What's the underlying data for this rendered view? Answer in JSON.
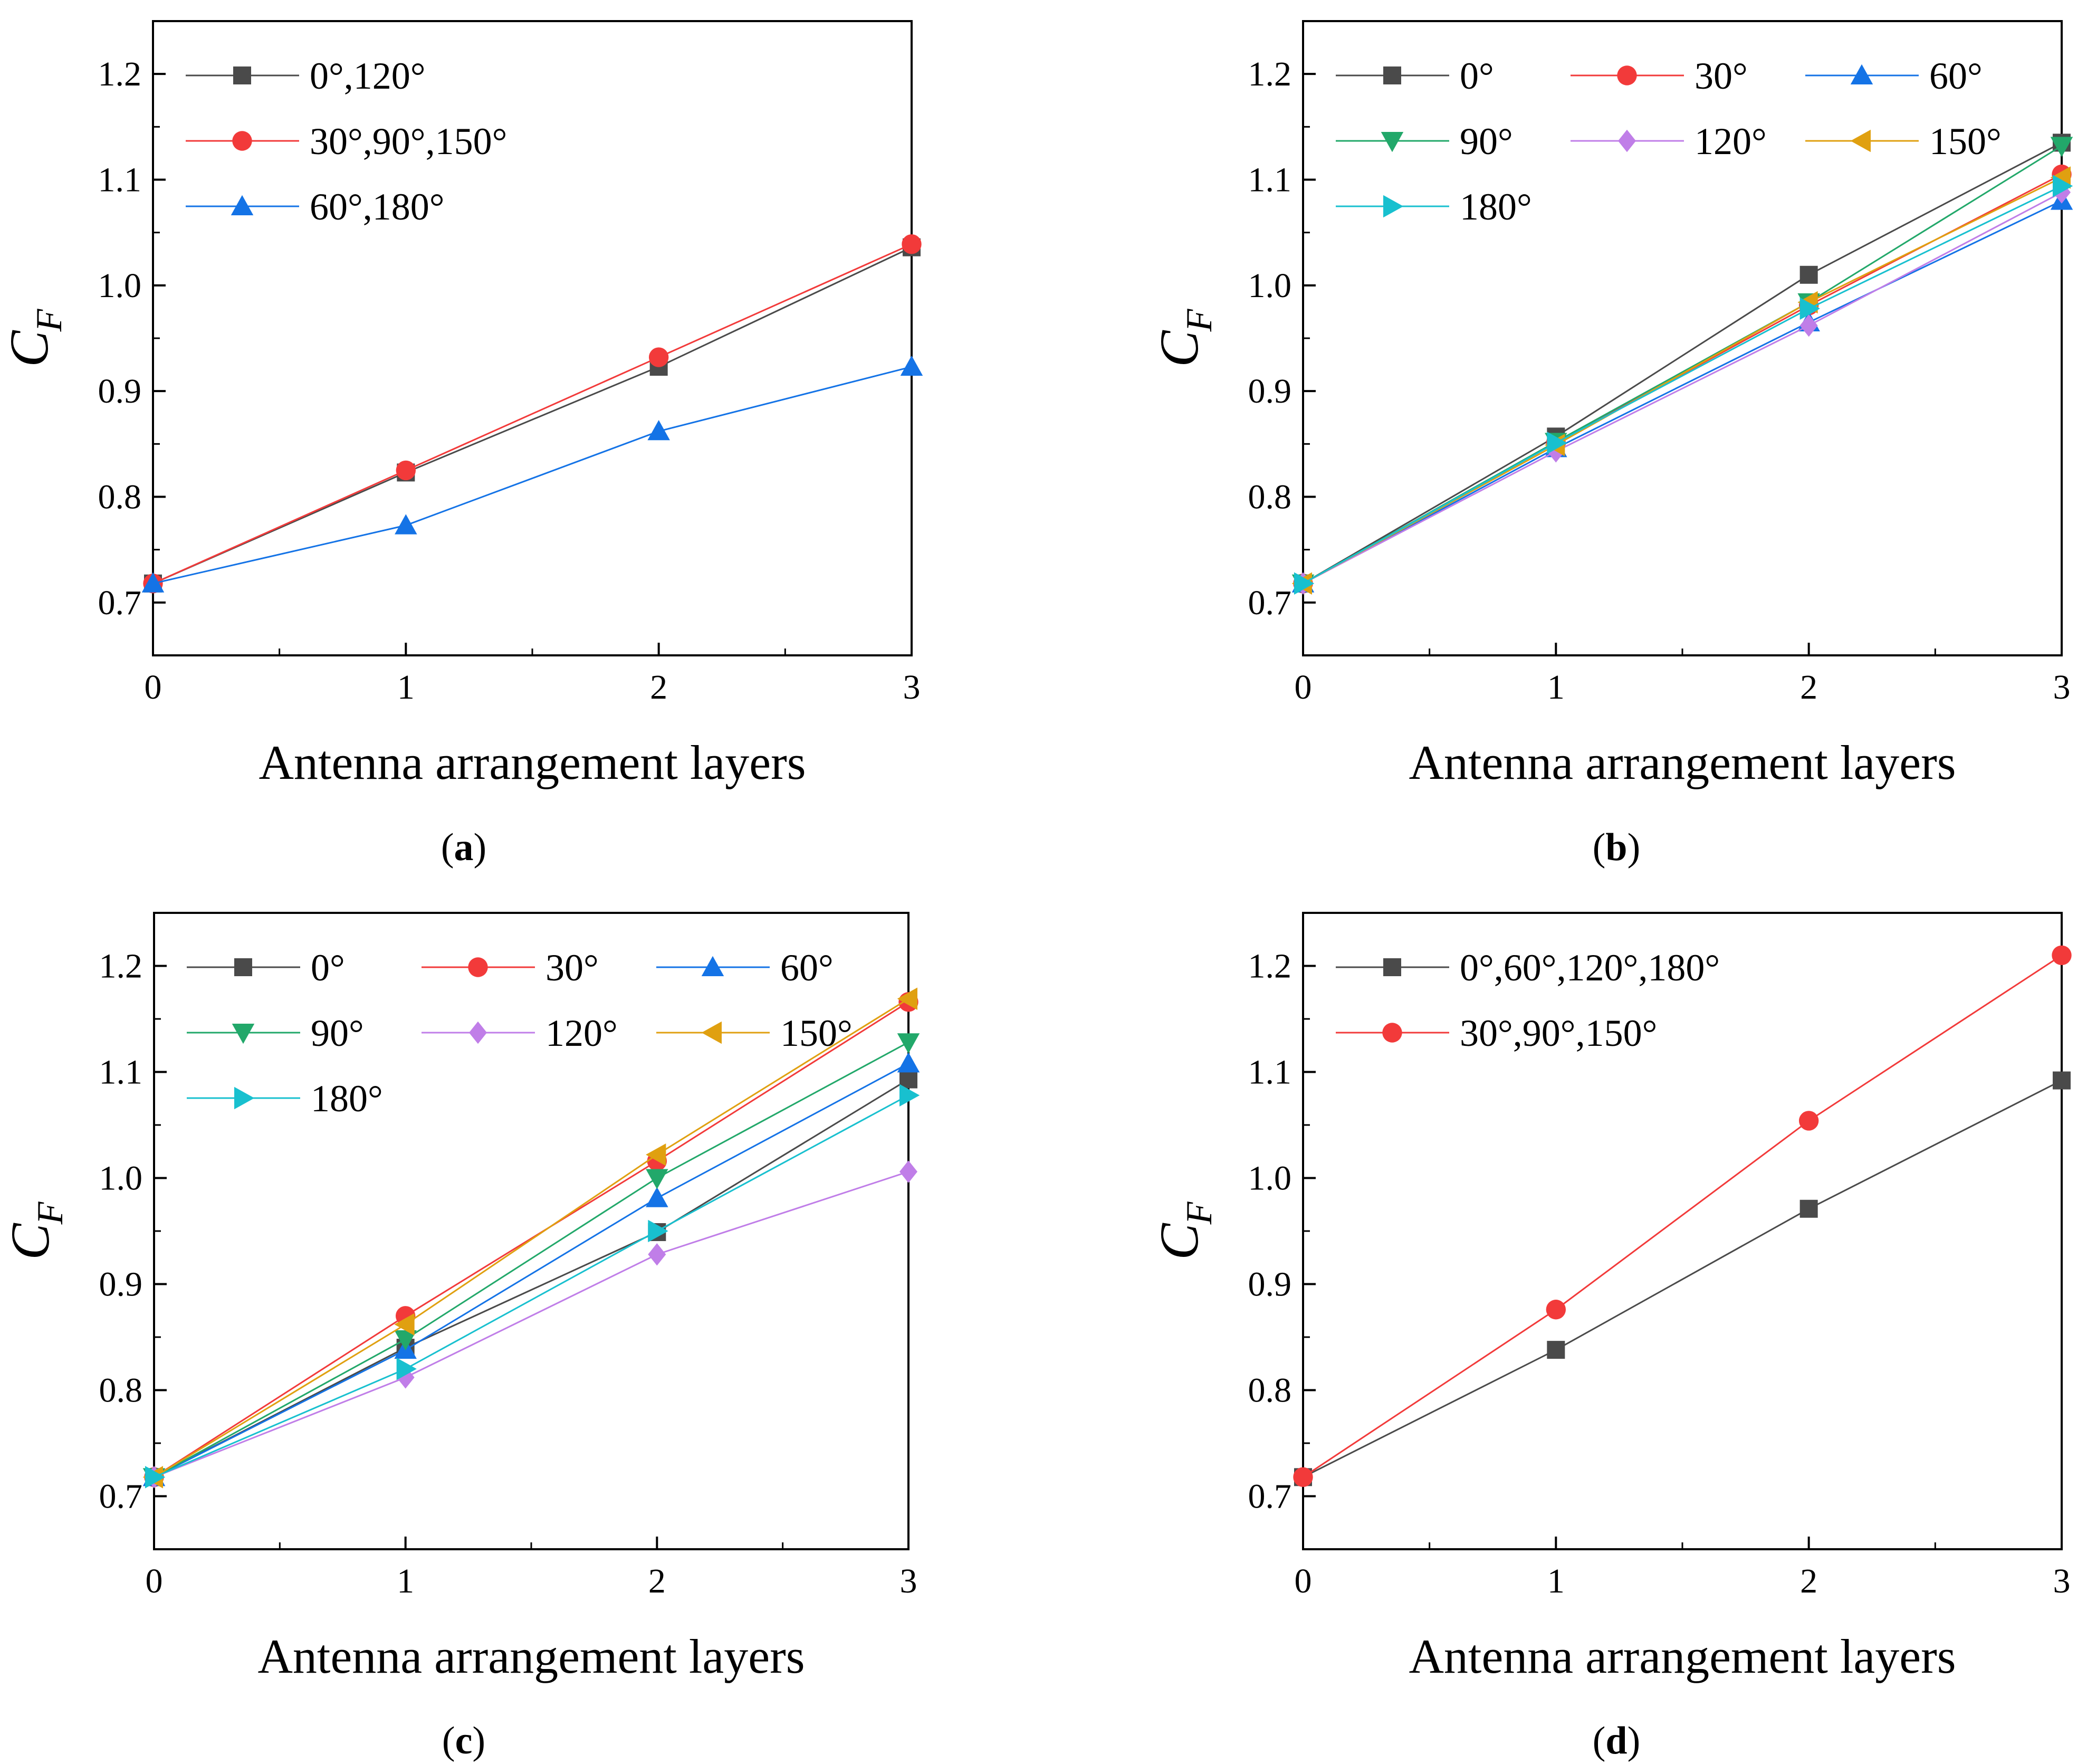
{
  "colors": {
    "series_0": "#4a4a4a",
    "series_30": "#f23a3a",
    "series_60": "#1473e6",
    "series_90": "#22a86a",
    "series_120": "#c07ee8",
    "series_150": "#e0a010",
    "series_180": "#18c0cf"
  },
  "chart_data": [
    {
      "type": "line",
      "panel": "a",
      "caption_letter": "a",
      "xlabel": "Antenna arrangement layers",
      "ylabel": "C",
      "ylabel_sub": "F",
      "xlim": [
        0,
        3
      ],
      "ylim": [
        0.65,
        1.25
      ],
      "xticks": [
        "0",
        "1",
        "2",
        "3"
      ],
      "yticks": [
        "0.7",
        "0.8",
        "0.9",
        "1.0",
        "1.1",
        "1.2"
      ],
      "x": [
        0,
        1,
        2,
        3
      ],
      "legend_columns": 1,
      "series": [
        {
          "name": "0°,120°",
          "marker": "square",
          "color": "#4a4a4a",
          "values": [
            0.718,
            0.823,
            0.923,
            1.036
          ]
        },
        {
          "name": "30°,90°,150°",
          "marker": "circle",
          "color": "#f23a3a",
          "values": [
            0.718,
            0.825,
            0.932,
            1.039
          ]
        },
        {
          "name": "60°,180°",
          "marker": "triangle-up",
          "color": "#1473e6",
          "values": [
            0.718,
            0.773,
            0.862,
            0.923
          ]
        }
      ]
    },
    {
      "type": "line",
      "panel": "b",
      "caption_letter": "b",
      "xlabel": "Antenna arrangement layers",
      "ylabel": "C",
      "ylabel_sub": "F",
      "xlim": [
        0,
        3
      ],
      "ylim": [
        0.65,
        1.25
      ],
      "xticks": [
        "0",
        "1",
        "2",
        "3"
      ],
      "yticks": [
        "0.7",
        "0.8",
        "0.9",
        "1.0",
        "1.1",
        "1.2"
      ],
      "x": [
        0,
        1,
        2,
        3
      ],
      "legend_columns": 3,
      "series": [
        {
          "name": "0°",
          "marker": "square",
          "color": "#4a4a4a",
          "values": [
            0.718,
            0.857,
            1.01,
            1.135
          ]
        },
        {
          "name": "30°",
          "marker": "circle",
          "color": "#f23a3a",
          "values": [
            0.718,
            0.851,
            0.981,
            1.105
          ]
        },
        {
          "name": "60°",
          "marker": "triangle-up",
          "color": "#1473e6",
          "values": [
            0.718,
            0.846,
            0.965,
            1.08
          ]
        },
        {
          "name": "90°",
          "marker": "triangle-down",
          "color": "#22a86a",
          "values": [
            0.718,
            0.852,
            0.984,
            1.132
          ]
        },
        {
          "name": "120°",
          "marker": "diamond",
          "color": "#c07ee8",
          "values": [
            0.718,
            0.843,
            0.962,
            1.088
          ]
        },
        {
          "name": "150°",
          "marker": "triangle-left",
          "color": "#e0a010",
          "values": [
            0.718,
            0.849,
            0.984,
            1.102
          ]
        },
        {
          "name": "180°",
          "marker": "triangle-right",
          "color": "#18c0cf",
          "values": [
            0.718,
            0.851,
            0.978,
            1.094
          ]
        }
      ]
    },
    {
      "type": "line",
      "panel": "c",
      "caption_letter": "c",
      "xlabel": "Antenna arrangement layers",
      "ylabel": "C",
      "ylabel_sub": "F",
      "xlim": [
        0,
        3
      ],
      "ylim": [
        0.65,
        1.25
      ],
      "xticks": [
        "0",
        "1",
        "2",
        "3"
      ],
      "yticks": [
        "0.7",
        "0.8",
        "0.9",
        "1.0",
        "1.1",
        "1.2"
      ],
      "x": [
        0,
        1,
        2,
        3
      ],
      "legend_columns": 3,
      "series": [
        {
          "name": "0°",
          "marker": "square",
          "color": "#4a4a4a",
          "values": [
            0.718,
            0.84,
            0.949,
            1.093
          ]
        },
        {
          "name": "30°",
          "marker": "circle",
          "color": "#f23a3a",
          "values": [
            0.718,
            0.87,
            1.016,
            1.166
          ]
        },
        {
          "name": "60°",
          "marker": "triangle-up",
          "color": "#1473e6",
          "values": [
            0.718,
            0.838,
            0.981,
            1.108
          ]
        },
        {
          "name": "90°",
          "marker": "triangle-down",
          "color": "#22a86a",
          "values": [
            0.718,
            0.848,
            1.0,
            1.128
          ]
        },
        {
          "name": "120°",
          "marker": "diamond",
          "color": "#c07ee8",
          "values": [
            0.718,
            0.812,
            0.928,
            1.006
          ]
        },
        {
          "name": "150°",
          "marker": "triangle-left",
          "color": "#e0a010",
          "values": [
            0.718,
            0.862,
            1.022,
            1.169
          ]
        },
        {
          "name": "180°",
          "marker": "triangle-right",
          "color": "#18c0cf",
          "values": [
            0.718,
            0.82,
            0.95,
            1.078
          ]
        }
      ]
    },
    {
      "type": "line",
      "panel": "d",
      "caption_letter": "d",
      "xlabel": "Antenna arrangement layers",
      "ylabel": "C",
      "ylabel_sub": "F",
      "xlim": [
        0,
        3
      ],
      "ylim": [
        0.65,
        1.25
      ],
      "xticks": [
        "0",
        "1",
        "2",
        "3"
      ],
      "yticks": [
        "0.7",
        "0.8",
        "0.9",
        "1.0",
        "1.1",
        "1.2"
      ],
      "x": [
        0,
        1,
        2,
        3
      ],
      "legend_columns": 1,
      "series": [
        {
          "name": "0°,60°,120°,180°",
          "marker": "square",
          "color": "#4a4a4a",
          "values": [
            0.718,
            0.838,
            0.971,
            1.092
          ]
        },
        {
          "name": "30°,90°,150°",
          "marker": "circle",
          "color": "#f23a3a",
          "values": [
            0.718,
            0.876,
            1.054,
            1.21
          ]
        }
      ]
    }
  ]
}
